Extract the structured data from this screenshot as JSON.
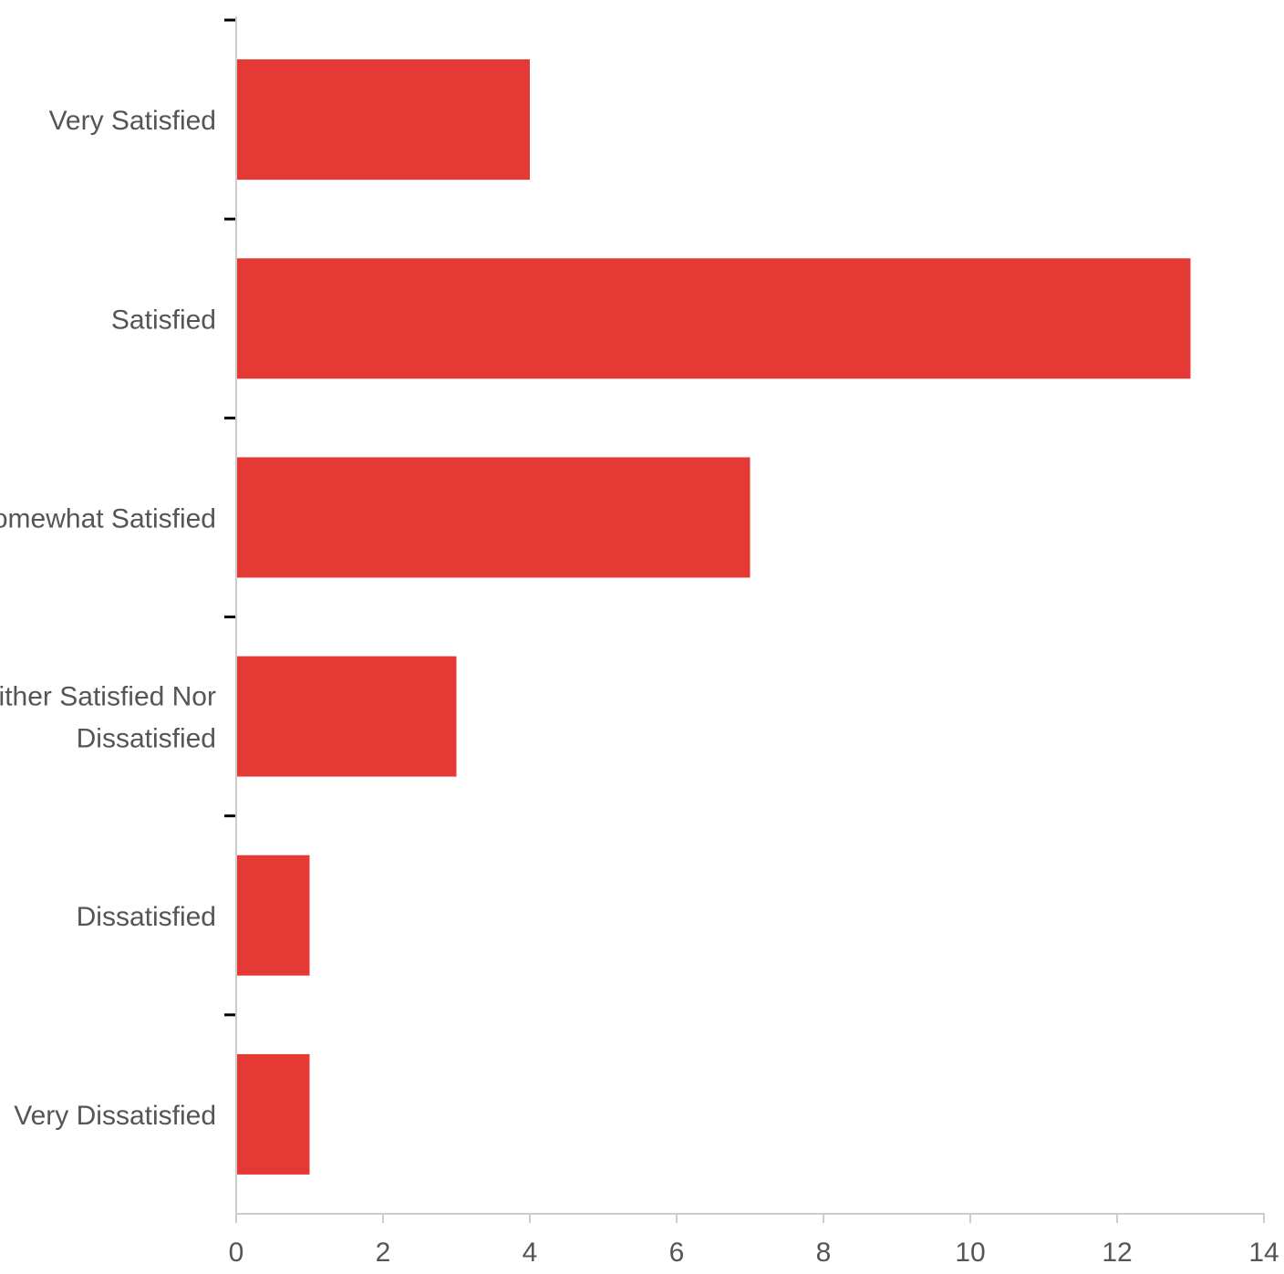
{
  "chart_data": {
    "type": "bar",
    "orientation": "horizontal",
    "title": "",
    "xlabel": "",
    "ylabel": "",
    "categories": [
      "Very Satisfied",
      "Satisfied",
      "Somewhat Satisfied",
      "Neither Satisfied Nor Dissatisfied",
      "Dissatisfied",
      "Very Dissatisfied"
    ],
    "category_label_lines": [
      [
        "Very Satisfied"
      ],
      [
        "Satisfied"
      ],
      [
        "Somewhat Satisfied"
      ],
      [
        "Neither Satisfied Nor",
        "Dissatisfied"
      ],
      [
        "Dissatisfied"
      ],
      [
        "Very Dissatisfied"
      ]
    ],
    "values": [
      4,
      13,
      7,
      3,
      1,
      1
    ],
    "xlim": [
      0,
      14
    ],
    "x_ticks": [
      0,
      2,
      4,
      6,
      8,
      10,
      12,
      14
    ],
    "x_tick_labels": [
      "0",
      "2",
      "4",
      "6",
      "8",
      "10",
      "12",
      "14"
    ],
    "grid": false,
    "legend": "none",
    "colors": {
      "bar": "#e53935",
      "axis": "#cccccc",
      "category_tick": "#000000",
      "text": "#555555",
      "background": "#ffffff"
    }
  }
}
